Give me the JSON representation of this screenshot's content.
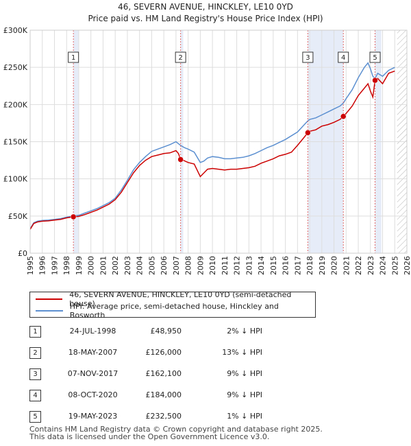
{
  "chart_data": {
    "type": "line",
    "title": "46, SEVERN AVENUE, HINCKLEY, LE10 0YD",
    "subtitle": "Price paid vs. HM Land Registry's House Price Index (HPI)",
    "xlim": [
      1995,
      2026
    ],
    "ylim": [
      0,
      300000
    ],
    "x_ticks": [
      "1995",
      "1996",
      "1997",
      "1998",
      "1999",
      "2000",
      "2001",
      "2002",
      "2003",
      "2004",
      "2005",
      "2006",
      "2007",
      "2008",
      "2009",
      "2010",
      "2011",
      "2012",
      "2013",
      "2014",
      "2015",
      "2016",
      "2017",
      "2018",
      "2019",
      "2020",
      "2021",
      "2022",
      "2023",
      "2024",
      "2025",
      "2026"
    ],
    "y_ticks": [
      {
        "value": 0,
        "label": "£0"
      },
      {
        "value": 50000,
        "label": "£50K"
      },
      {
        "value": 100000,
        "label": "£100K"
      },
      {
        "value": 150000,
        "label": "£150K"
      },
      {
        "value": 200000,
        "label": "£200K"
      },
      {
        "value": 250000,
        "label": "£250K"
      },
      {
        "value": 300000,
        "label": "£300K"
      }
    ],
    "grid": true,
    "future_from": 2025.2,
    "series": [
      {
        "name": "46, SEVERN AVENUE, HINCKLEY, LE10 0YD (semi-detached house)",
        "color": "#cc0000",
        "x": [
          1995.0,
          1995.3,
          1995.6,
          1996.0,
          1996.5,
          1997.0,
          1997.5,
          1998.0,
          1998.56,
          1999.0,
          1999.5,
          2000.0,
          2000.5,
          2001.0,
          2001.5,
          2002.0,
          2002.5,
          2003.0,
          2003.5,
          2004.0,
          2004.5,
          2005.0,
          2005.5,
          2006.0,
          2006.5,
          2007.0,
          2007.2,
          2007.38,
          2007.6,
          2008.0,
          2008.5,
          2009.0,
          2009.3,
          2009.6,
          2010.0,
          2010.5,
          2011.0,
          2011.5,
          2012.0,
          2012.5,
          2013.0,
          2013.5,
          2014.0,
          2014.5,
          2015.0,
          2015.5,
          2016.0,
          2016.5,
          2017.0,
          2017.5,
          2017.85,
          2018.0,
          2018.5,
          2019.0,
          2019.5,
          2020.0,
          2020.5,
          2020.77,
          2021.0,
          2021.5,
          2022.0,
          2022.5,
          2022.8,
          2023.0,
          2023.2,
          2023.38,
          2023.6,
          2024.0,
          2024.5,
          2025.0
        ],
        "values": [
          32000,
          40000,
          42000,
          43000,
          43500,
          44500,
          45500,
          47500,
          48950,
          49500,
          52000,
          55000,
          58000,
          62000,
          66000,
          72000,
          82000,
          95000,
          108000,
          118000,
          125000,
          130000,
          132000,
          134000,
          135000,
          138000,
          134000,
          126000,
          125000,
          122000,
          120000,
          103000,
          108000,
          113000,
          114000,
          113000,
          112000,
          113000,
          113000,
          114000,
          115000,
          117000,
          121000,
          124000,
          127000,
          131000,
          133000,
          136000,
          145000,
          155000,
          162100,
          164000,
          166000,
          171000,
          173000,
          176000,
          180000,
          184000,
          188000,
          198000,
          212000,
          222000,
          228000,
          218000,
          210000,
          232500,
          235000,
          228000,
          242000,
          245000
        ]
      },
      {
        "name": "HPI: Average price, semi-detached house, Hinckley and Bosworth",
        "color": "#5b8fd0",
        "x": [
          1995.0,
          1995.3,
          1995.6,
          1996.0,
          1996.5,
          1997.0,
          1997.5,
          1998.0,
          1998.56,
          1999.0,
          1999.5,
          2000.0,
          2000.5,
          2001.0,
          2001.5,
          2002.0,
          2002.5,
          2003.0,
          2003.5,
          2004.0,
          2004.5,
          2005.0,
          2005.5,
          2006.0,
          2006.5,
          2007.0,
          2007.38,
          2007.7,
          2008.0,
          2008.5,
          2009.0,
          2009.3,
          2009.6,
          2010.0,
          2010.5,
          2011.0,
          2011.5,
          2012.0,
          2012.5,
          2013.0,
          2013.5,
          2014.0,
          2014.5,
          2015.0,
          2015.5,
          2016.0,
          2016.5,
          2017.0,
          2017.5,
          2017.85,
          2018.0,
          2018.5,
          2019.0,
          2019.5,
          2020.0,
          2020.5,
          2020.77,
          2021.0,
          2021.5,
          2022.0,
          2022.5,
          2022.8,
          2023.0,
          2023.2,
          2023.38,
          2023.6,
          2024.0,
          2024.5,
          2025.0
        ],
        "values": [
          33000,
          41000,
          43000,
          44000,
          44500,
          45500,
          46500,
          48500,
          50000,
          51000,
          54000,
          57000,
          60000,
          64000,
          68000,
          74000,
          85000,
          98000,
          112000,
          122000,
          130000,
          137000,
          140000,
          143000,
          146000,
          150000,
          145000,
          142000,
          140000,
          136000,
          122000,
          124000,
          128000,
          130000,
          129000,
          127000,
          127000,
          128000,
          129000,
          131000,
          134000,
          138000,
          142000,
          145000,
          149000,
          153000,
          158000,
          163000,
          172000,
          178000,
          180000,
          182000,
          186000,
          190000,
          194000,
          198000,
          202000,
          208000,
          220000,
          236000,
          250000,
          256000,
          248000,
          238000,
          235000,
          242000,
          238000,
          246000,
          250000
        ]
      }
    ],
    "sales": [
      {
        "num": "1",
        "year": 1998.56,
        "price": 48950
      },
      {
        "num": "2",
        "year": 2007.38,
        "price": 126000
      },
      {
        "num": "3",
        "year": 2017.85,
        "price": 162100
      },
      {
        "num": "4",
        "year": 2020.77,
        "price": 184000
      },
      {
        "num": "5",
        "year": 2023.38,
        "price": 232500
      }
    ],
    "shaded_periods": [
      [
        1998.56,
        1999.0
      ],
      [
        2007.38,
        2007.6
      ],
      [
        2017.85,
        2020.77
      ],
      [
        2023.38,
        2023.9
      ]
    ]
  },
  "legend": {
    "property_label": "46, SEVERN AVENUE, HINCKLEY, LE10 0YD (semi-detached house)",
    "hpi_label": "HPI: Average price, semi-detached house, Hinckley and Bosworth",
    "property_color": "#cc0000",
    "hpi_color": "#5b8fd0"
  },
  "sales_table": [
    {
      "num": "1",
      "date": "24-JUL-1998",
      "price": "£48,950",
      "hpi": "2% ↓ HPI"
    },
    {
      "num": "2",
      "date": "18-MAY-2007",
      "price": "£126,000",
      "hpi": "13% ↓ HPI"
    },
    {
      "num": "3",
      "date": "07-NOV-2017",
      "price": "£162,100",
      "hpi": "9% ↓ HPI"
    },
    {
      "num": "4",
      "date": "08-OCT-2020",
      "price": "£184,000",
      "hpi": "9% ↓ HPI"
    },
    {
      "num": "5",
      "date": "19-MAY-2023",
      "price": "£232,500",
      "hpi": "1% ↓ HPI"
    }
  ],
  "footer": {
    "line1": "Contains HM Land Registry data © Crown copyright and database right 2025.",
    "line2": "This data is licensed under the Open Government Licence v3.0."
  }
}
